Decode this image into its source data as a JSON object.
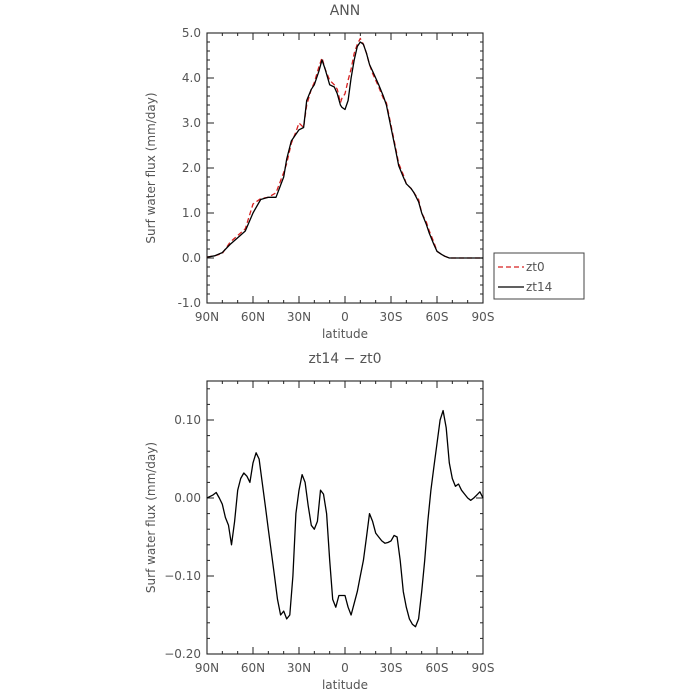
{
  "chart_data": [
    {
      "type": "line",
      "title": "ANN",
      "xlabel": "latitude",
      "ylabel": "Surf water flux (mm/day)",
      "xlim": [
        -90,
        90
      ],
      "ylim": [
        -1.0,
        5.0
      ],
      "x_ticks": [
        -90,
        -60,
        -30,
        0,
        30,
        60,
        90
      ],
      "x_tick_labels": [
        "90N",
        "60N",
        "30N",
        "0",
        "30S",
        "60S",
        "90S"
      ],
      "y_ticks": [
        -1.0,
        0.0,
        1.0,
        2.0,
        3.0,
        4.0,
        5.0
      ],
      "y_tick_labels": [
        "-1.0",
        "0.0",
        "1.0",
        "2.0",
        "3.0",
        "4.0",
        "5.0"
      ],
      "grid": false,
      "legend_position": "right, outside",
      "legend": [
        {
          "name": "zt0",
          "color": "#d62020",
          "dash": "dashed"
        },
        {
          "name": "zt14",
          "color": "#000000",
          "dash": "solid"
        }
      ],
      "series": [
        {
          "name": "zt0",
          "color": "#d62020",
          "x": [
            -90,
            -85,
            -80,
            -75,
            -70,
            -65,
            -60,
            -55,
            -50,
            -45,
            -40,
            -38,
            -35,
            -32,
            -30,
            -27,
            -25,
            -22,
            -20,
            -17,
            -15,
            -13,
            -10,
            -7,
            -5,
            -3,
            -2,
            0,
            2,
            4,
            6,
            8,
            10,
            12,
            14,
            16,
            18,
            20,
            22,
            25,
            27,
            30,
            33,
            35,
            38,
            40,
            43,
            45,
            48,
            50,
            53,
            55,
            58,
            60,
            63,
            65,
            68,
            70,
            73,
            75,
            78,
            80,
            83,
            85,
            88,
            90
          ],
          "y": [
            0.02,
            0.05,
            0.1,
            0.35,
            0.5,
            0.65,
            1.2,
            1.32,
            1.35,
            1.45,
            1.9,
            2.1,
            2.55,
            2.8,
            3.0,
            2.9,
            3.4,
            3.75,
            3.9,
            4.25,
            4.45,
            4.2,
            3.95,
            3.85,
            3.75,
            3.45,
            3.55,
            3.65,
            3.95,
            4.2,
            4.55,
            4.75,
            4.88,
            4.75,
            4.55,
            4.3,
            4.1,
            3.95,
            3.8,
            3.55,
            3.45,
            2.95,
            2.45,
            2.1,
            1.85,
            1.65,
            1.55,
            1.45,
            1.3,
            1.0,
            0.8,
            0.6,
            0.35,
            0.15,
            0.08,
            0.04,
            0.0,
            0.0,
            0.0,
            0.0,
            0.0,
            0.0,
            0.0,
            0.0,
            0.0,
            0.0
          ]
        },
        {
          "name": "zt14",
          "color": "#000000",
          "x": [
            -90,
            -85,
            -80,
            -75,
            -70,
            -65,
            -60,
            -55,
            -50,
            -45,
            -40,
            -38,
            -35,
            -32,
            -30,
            -27,
            -25,
            -22,
            -20,
            -17,
            -15,
            -13,
            -10,
            -7,
            -5,
            -3,
            -2,
            0,
            2,
            4,
            6,
            8,
            10,
            12,
            14,
            16,
            18,
            20,
            22,
            25,
            27,
            30,
            33,
            35,
            38,
            40,
            43,
            45,
            48,
            50,
            53,
            55,
            58,
            60,
            63,
            65,
            68,
            70,
            73,
            75,
            78,
            80,
            83,
            85,
            88,
            90
          ],
          "y": [
            0.02,
            0.05,
            0.12,
            0.3,
            0.45,
            0.6,
            1.0,
            1.3,
            1.35,
            1.35,
            1.8,
            2.2,
            2.6,
            2.75,
            2.85,
            2.9,
            3.5,
            3.75,
            3.85,
            4.15,
            4.4,
            4.2,
            3.85,
            3.8,
            3.65,
            3.4,
            3.35,
            3.3,
            3.5,
            4.0,
            4.4,
            4.7,
            4.8,
            4.75,
            4.55,
            4.3,
            4.15,
            4.0,
            3.85,
            3.6,
            3.4,
            2.9,
            2.4,
            2.05,
            1.8,
            1.65,
            1.55,
            1.45,
            1.25,
            1.0,
            0.75,
            0.55,
            0.3,
            0.15,
            0.08,
            0.04,
            0.0,
            0.0,
            0.0,
            0.0,
            0.0,
            0.0,
            0.0,
            0.0,
            0.0,
            0.0
          ]
        }
      ]
    },
    {
      "type": "line",
      "title": "zt14 − zt0",
      "xlabel": "latitude",
      "ylabel": "Surf water flux (mm/day)",
      "xlim": [
        -90,
        90
      ],
      "ylim": [
        -0.2,
        0.15
      ],
      "x_ticks": [
        -90,
        -60,
        -30,
        0,
        30,
        60,
        90
      ],
      "x_tick_labels": [
        "90N",
        "60N",
        "30N",
        "0",
        "30S",
        "60S",
        "90S"
      ],
      "y_ticks": [
        -0.2,
        -0.1,
        0.0,
        0.1
      ],
      "y_tick_labels": [
        "−0.20",
        "−0.10",
        "0.00",
        "0.10"
      ],
      "grid": false,
      "series": [
        {
          "color": "#000000",
          "x": [
            -90,
            -88,
            -86,
            -84,
            -82,
            -80,
            -78,
            -76,
            -74,
            -72,
            -70,
            -68,
            -66,
            -64,
            -62,
            -60,
            -58,
            -56,
            -54,
            -52,
            -50,
            -48,
            -46,
            -44,
            -42,
            -40,
            -38,
            -36,
            -34,
            -32,
            -30,
            -28,
            -26,
            -24,
            -22,
            -20,
            -18,
            -16,
            -14,
            -12,
            -10,
            -8,
            -6,
            -4,
            -2,
            0,
            2,
            4,
            6,
            8,
            10,
            12,
            14,
            16,
            18,
            20,
            22,
            24,
            26,
            28,
            30,
            32,
            34,
            36,
            38,
            40,
            42,
            44,
            46,
            48,
            50,
            52,
            54,
            56,
            58,
            60,
            62,
            64,
            66,
            68,
            70,
            72,
            74,
            76,
            78,
            80,
            82,
            84,
            86,
            88,
            90
          ],
          "y": [
            0.0,
            0.002,
            0.004,
            0.007,
            0.0,
            -0.008,
            -0.025,
            -0.035,
            -0.06,
            -0.03,
            0.01,
            0.025,
            0.032,
            0.028,
            0.02,
            0.045,
            0.058,
            0.05,
            0.02,
            -0.01,
            -0.04,
            -0.07,
            -0.1,
            -0.13,
            -0.15,
            -0.145,
            -0.155,
            -0.15,
            -0.1,
            -0.02,
            0.01,
            0.03,
            0.02,
            -0.01,
            -0.035,
            -0.04,
            -0.03,
            0.01,
            0.005,
            -0.02,
            -0.08,
            -0.13,
            -0.14,
            -0.125,
            -0.125,
            -0.125,
            -0.14,
            -0.15,
            -0.135,
            -0.12,
            -0.1,
            -0.08,
            -0.05,
            -0.02,
            -0.03,
            -0.045,
            -0.05,
            -0.055,
            -0.058,
            -0.057,
            -0.055,
            -0.048,
            -0.05,
            -0.08,
            -0.12,
            -0.14,
            -0.155,
            -0.162,
            -0.165,
            -0.155,
            -0.12,
            -0.08,
            -0.03,
            0.01,
            0.04,
            0.07,
            0.1,
            0.112,
            0.09,
            0.045,
            0.025,
            0.015,
            0.018,
            0.01,
            0.005,
            0.0,
            -0.003,
            0.0,
            0.004,
            0.008,
            0.0
          ]
        }
      ]
    }
  ]
}
